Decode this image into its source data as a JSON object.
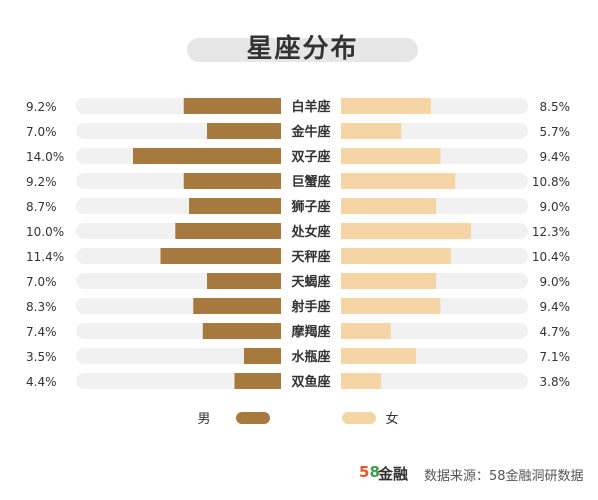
{
  "title": "星座分布",
  "colors": {
    "male": "#a67a3e",
    "female": "#f5d5a6",
    "track": "#f1f1f1",
    "text": "#333333"
  },
  "chart_data": {
    "type": "bar",
    "categories": [
      "白羊座",
      "金牛座",
      "双子座",
      "巨蟹座",
      "狮子座",
      "处女座",
      "天秤座",
      "天蝎座",
      "射手座",
      "摩羯座",
      "水瓶座",
      "双鱼座"
    ],
    "series": [
      {
        "name": "男",
        "values": [
          9.2,
          7.0,
          14.0,
          9.2,
          8.7,
          10.0,
          11.4,
          7.0,
          8.3,
          7.4,
          3.5,
          4.4
        ]
      },
      {
        "name": "女",
        "values": [
          8.5,
          5.7,
          9.4,
          10.8,
          9.0,
          12.3,
          10.4,
          9.0,
          9.4,
          4.7,
          7.1,
          3.8
        ]
      }
    ],
    "value_labels": {
      "男": [
        "9.2%",
        "7.0%",
        "14.0%",
        "9.2%",
        "8.7%",
        "10.0%",
        "11.4%",
        "7.0%",
        "8.3%",
        "7.4%",
        "3.5%",
        "4.4%"
      ],
      "女": [
        "8.5%",
        "5.7%",
        "9.4%",
        "10.8%",
        "9.0%",
        "12.3%",
        "10.4%",
        "9.0%",
        "9.4%",
        "4.7%",
        "7.1%",
        "3.8%"
      ]
    },
    "unit": "%",
    "xlim": [
      0,
      20
    ]
  },
  "legend": {
    "male": "男",
    "female": "女"
  },
  "footer": {
    "brand_digit1": "5",
    "brand_digit2": "8",
    "brand_text": "金融",
    "source": "数据来源：58金融洞研数据"
  }
}
